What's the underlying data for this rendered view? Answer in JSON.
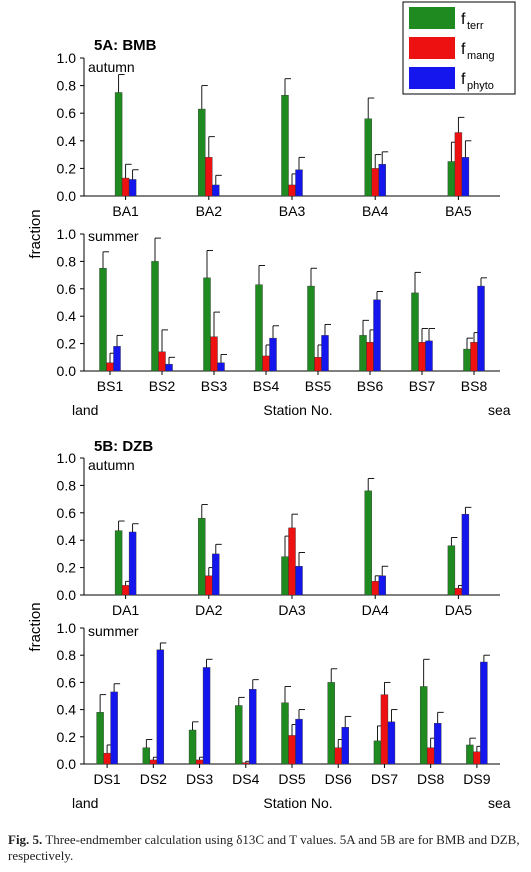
{
  "legend": {
    "items": [
      {
        "symbol": "f",
        "sub": "terr",
        "color": "#1f8a1f"
      },
      {
        "symbol": "f",
        "sub": "mang",
        "color": "#ee1111"
      },
      {
        "symbol": "f",
        "sub": "phyto",
        "color": "#1515ee"
      }
    ]
  },
  "caption": {
    "label": "Fig. 5.",
    "text": "Three-endmember calculation using δ13C and T values. 5A and 5B are for BMB and DZB, respectively."
  },
  "chart_data": [
    {
      "type": "bar",
      "title": "5A: BMB",
      "subtitle": "autumn",
      "ylabel": "fraction",
      "ylim": [
        0,
        1.0
      ],
      "yticks": [
        "0.0",
        "0.2",
        "0.4",
        "0.6",
        "0.8",
        "1.0"
      ],
      "categories": [
        "BA1",
        "BA2",
        "BA3",
        "BA4",
        "BA5"
      ],
      "series": [
        {
          "name": "fterr",
          "values": [
            0.75,
            0.63,
            0.73,
            0.56,
            0.25
          ],
          "err": [
            0.13,
            0.17,
            0.12,
            0.15,
            0.14
          ]
        },
        {
          "name": "fmang",
          "values": [
            0.13,
            0.28,
            0.08,
            0.2,
            0.46
          ],
          "err": [
            0.1,
            0.15,
            0.08,
            0.1,
            0.11
          ]
        },
        {
          "name": "fphyto",
          "values": [
            0.12,
            0.08,
            0.19,
            0.23,
            0.28
          ],
          "err": [
            0.07,
            0.07,
            0.09,
            0.09,
            0.12
          ]
        }
      ]
    },
    {
      "type": "bar",
      "subtitle": "summer",
      "ylim": [
        0,
        1.0
      ],
      "yticks": [
        "0.0",
        "0.2",
        "0.4",
        "0.6",
        "0.8",
        "1.0"
      ],
      "categories": [
        "BS1",
        "BS2",
        "BS3",
        "BS4",
        "BS5",
        "BS6",
        "BS7",
        "BS8"
      ],
      "xlabel": "Station No.",
      "left_label": "land",
      "right_label": "sea",
      "series": [
        {
          "name": "fterr",
          "values": [
            0.75,
            0.8,
            0.68,
            0.63,
            0.62,
            0.26,
            0.57,
            0.16
          ],
          "err": [
            0.12,
            0.17,
            0.2,
            0.14,
            0.13,
            0.11,
            0.15,
            0.08
          ]
        },
        {
          "name": "fmang",
          "values": [
            0.06,
            0.14,
            0.25,
            0.11,
            0.1,
            0.21,
            0.21,
            0.21
          ],
          "err": [
            0.07,
            0.16,
            0.18,
            0.08,
            0.09,
            0.09,
            0.1,
            0.07
          ]
        },
        {
          "name": "fphyto",
          "values": [
            0.18,
            0.05,
            0.06,
            0.24,
            0.26,
            0.52,
            0.22,
            0.62
          ],
          "err": [
            0.08,
            0.05,
            0.06,
            0.09,
            0.08,
            0.06,
            0.09,
            0.06
          ]
        }
      ]
    },
    {
      "type": "bar",
      "title": "5B: DZB",
      "subtitle": "autumn",
      "ylabel": "fraction",
      "ylim": [
        0,
        1.0
      ],
      "yticks": [
        "0.0",
        "0.2",
        "0.4",
        "0.6",
        "0.8",
        "1.0"
      ],
      "categories": [
        "DA1",
        "DA2",
        "DA3",
        "DA4",
        "DA5"
      ],
      "series": [
        {
          "name": "fterr",
          "values": [
            0.47,
            0.56,
            0.28,
            0.76,
            0.36
          ],
          "err": [
            0.07,
            0.1,
            0.15,
            0.09,
            0.06
          ]
        },
        {
          "name": "fmang",
          "values": [
            0.07,
            0.14,
            0.49,
            0.1,
            0.05
          ],
          "err": [
            0.03,
            0.06,
            0.1,
            0.04,
            0.02
          ]
        },
        {
          "name": "fphyto",
          "values": [
            0.46,
            0.3,
            0.21,
            0.14,
            0.59
          ],
          "err": [
            0.06,
            0.07,
            0.1,
            0.07,
            0.05
          ]
        }
      ]
    },
    {
      "type": "bar",
      "subtitle": "summer",
      "ylim": [
        0,
        1.0
      ],
      "yticks": [
        "0.0",
        "0.2",
        "0.4",
        "0.6",
        "0.8",
        "1.0"
      ],
      "categories": [
        "DS1",
        "DS2",
        "DS3",
        "DS4",
        "DS5",
        "DS6",
        "DS7",
        "DS8",
        "DS9"
      ],
      "xlabel": "Station No.",
      "left_label": "land",
      "right_label": "sea",
      "series": [
        {
          "name": "fterr",
          "values": [
            0.38,
            0.12,
            0.25,
            0.43,
            0.45,
            0.6,
            0.17,
            0.57,
            0.14
          ],
          "err": [
            0.13,
            0.06,
            0.06,
            0.06,
            0.12,
            0.1,
            0.11,
            0.2,
            0.05
          ]
        },
        {
          "name": "fmang",
          "values": [
            0.08,
            0.03,
            0.03,
            0.01,
            0.21,
            0.12,
            0.51,
            0.12,
            0.09
          ],
          "err": [
            0.06,
            0.02,
            0.02,
            0.01,
            0.08,
            0.06,
            0.09,
            0.07,
            0.04
          ]
        },
        {
          "name": "fphyto",
          "values": [
            0.53,
            0.84,
            0.71,
            0.55,
            0.33,
            0.27,
            0.31,
            0.3,
            0.75
          ],
          "err": [
            0.06,
            0.05,
            0.06,
            0.07,
            0.07,
            0.08,
            0.09,
            0.08,
            0.05
          ]
        }
      ]
    }
  ]
}
